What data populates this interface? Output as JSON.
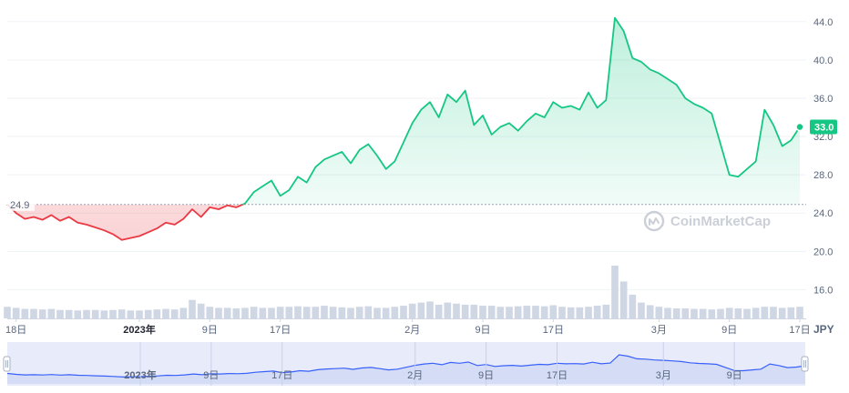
{
  "chart_data": {
    "type": "area",
    "currency": "JPY",
    "baseline": 24.9,
    "baseline_label": "24.9",
    "current_price": 33.0,
    "current_price_label": "33.0",
    "ylim": [
      13.0,
      45.5
    ],
    "y_ticks": [
      "16.0",
      "20.0",
      "24.0",
      "28.0",
      "32.0",
      "36.0",
      "40.0",
      "44.0"
    ],
    "y_tick_values": [
      16,
      20,
      24,
      28,
      32,
      36,
      40,
      44
    ],
    "xlim": [
      "2022-12-17",
      "2023-03-17"
    ],
    "x_ticks": [
      {
        "date": "2022-12-18",
        "label": "18日",
        "bold": false
      },
      {
        "date": "2023-01-01",
        "label": "2023年",
        "bold": true
      },
      {
        "date": "2023-01-09",
        "label": "9日",
        "bold": false
      },
      {
        "date": "2023-01-17",
        "label": "17日",
        "bold": false
      },
      {
        "date": "2023-02-01",
        "label": "2月",
        "bold": false
      },
      {
        "date": "2023-02-09",
        "label": "9日",
        "bold": false
      },
      {
        "date": "2023-02-17",
        "label": "17日",
        "bold": false
      },
      {
        "date": "2023-03-01",
        "label": "3月",
        "bold": false
      },
      {
        "date": "2023-03-09",
        "label": "9日",
        "bold": false
      },
      {
        "date": "2023-03-17",
        "label": "17日",
        "bold": false
      }
    ],
    "navigator_ticks": [
      {
        "date": "2023-01-01",
        "label": "2023年",
        "bold": true
      },
      {
        "date": "2023-01-09",
        "label": "9日",
        "bold": false
      },
      {
        "date": "2023-01-17",
        "label": "17日",
        "bold": false
      },
      {
        "date": "2023-02-01",
        "label": "2月",
        "bold": false
      },
      {
        "date": "2023-02-09",
        "label": "9日",
        "bold": false
      },
      {
        "date": "2023-02-17",
        "label": "17日",
        "bold": false
      },
      {
        "date": "2023-03-01",
        "label": "3月",
        "bold": false
      },
      {
        "date": "2023-03-09",
        "label": "9日",
        "bold": false
      }
    ],
    "price": {
      "dates": [
        "2022-12-17",
        "2022-12-18",
        "2022-12-19",
        "2022-12-20",
        "2022-12-21",
        "2022-12-22",
        "2022-12-23",
        "2022-12-24",
        "2022-12-25",
        "2022-12-26",
        "2022-12-27",
        "2022-12-28",
        "2022-12-29",
        "2022-12-30",
        "2022-12-31",
        "2023-01-01",
        "2023-01-02",
        "2023-01-03",
        "2023-01-04",
        "2023-01-05",
        "2023-01-06",
        "2023-01-07",
        "2023-01-08",
        "2023-01-09",
        "2023-01-10",
        "2023-01-11",
        "2023-01-12",
        "2023-01-13",
        "2023-01-14",
        "2023-01-15",
        "2023-01-16",
        "2023-01-17",
        "2023-01-18",
        "2023-01-19",
        "2023-01-20",
        "2023-01-21",
        "2023-01-22",
        "2023-01-23",
        "2023-01-24",
        "2023-01-25",
        "2023-01-26",
        "2023-01-27",
        "2023-01-28",
        "2023-01-29",
        "2023-01-30",
        "2023-01-31",
        "2023-02-01",
        "2023-02-02",
        "2023-02-03",
        "2023-02-04",
        "2023-02-05",
        "2023-02-06",
        "2023-02-07",
        "2023-02-08",
        "2023-02-09",
        "2023-02-10",
        "2023-02-11",
        "2023-02-12",
        "2023-02-13",
        "2023-02-14",
        "2023-02-15",
        "2023-02-16",
        "2023-02-17",
        "2023-02-18",
        "2023-02-19",
        "2023-02-20",
        "2023-02-21",
        "2023-02-22",
        "2023-02-23",
        "2023-02-24",
        "2023-02-25",
        "2023-02-26",
        "2023-02-27",
        "2023-02-28",
        "2023-03-01",
        "2023-03-02",
        "2023-03-03",
        "2023-03-04",
        "2023-03-05",
        "2023-03-06",
        "2023-03-07",
        "2023-03-08",
        "2023-03-09",
        "2023-03-10",
        "2023-03-11",
        "2023-03-12",
        "2023-03-13",
        "2023-03-14",
        "2023-03-15",
        "2023-03-16",
        "2023-03-17"
      ],
      "values": [
        24.9,
        24.0,
        23.4,
        23.6,
        23.3,
        23.8,
        23.2,
        23.6,
        23.0,
        22.8,
        22.5,
        22.2,
        21.8,
        21.2,
        21.4,
        21.6,
        22.0,
        22.4,
        23.0,
        22.8,
        23.4,
        24.4,
        23.6,
        24.6,
        24.4,
        24.8,
        24.6,
        25.0,
        26.2,
        26.8,
        27.4,
        25.8,
        26.4,
        27.8,
        27.2,
        28.8,
        29.6,
        30.0,
        30.4,
        29.2,
        30.6,
        31.2,
        30.0,
        28.6,
        29.4,
        31.4,
        33.4,
        34.8,
        35.6,
        34.0,
        36.4,
        35.6,
        36.8,
        33.2,
        34.2,
        32.2,
        33.0,
        33.4,
        32.6,
        33.6,
        34.4,
        34.0,
        35.6,
        35.0,
        35.2,
        34.8,
        36.6,
        35.0,
        35.8,
        44.4,
        43.0,
        40.2,
        39.8,
        39.0,
        38.6,
        38.0,
        37.4,
        36.0,
        35.4,
        35.0,
        34.4,
        31.2,
        28.0,
        27.8,
        28.6,
        29.4,
        34.8,
        33.2,
        31.0,
        31.6,
        33.0
      ],
      "color_above": "#16c784",
      "color_below": "#ea3943"
    },
    "volume": {
      "dates": [
        "2022-12-17",
        "2022-12-18",
        "2022-12-19",
        "2022-12-20",
        "2022-12-21",
        "2022-12-22",
        "2022-12-23",
        "2022-12-24",
        "2022-12-25",
        "2022-12-26",
        "2022-12-27",
        "2022-12-28",
        "2022-12-29",
        "2022-12-30",
        "2022-12-31",
        "2023-01-01",
        "2023-01-02",
        "2023-01-03",
        "2023-01-04",
        "2023-01-05",
        "2023-01-06",
        "2023-01-07",
        "2023-01-08",
        "2023-01-09",
        "2023-01-10",
        "2023-01-11",
        "2023-01-12",
        "2023-01-13",
        "2023-01-14",
        "2023-01-15",
        "2023-01-16",
        "2023-01-17",
        "2023-01-18",
        "2023-01-19",
        "2023-01-20",
        "2023-01-21",
        "2023-01-22",
        "2023-01-23",
        "2023-01-24",
        "2023-01-25",
        "2023-01-26",
        "2023-01-27",
        "2023-01-28",
        "2023-01-29",
        "2023-01-30",
        "2023-01-31",
        "2023-02-01",
        "2023-02-02",
        "2023-02-03",
        "2023-02-04",
        "2023-02-05",
        "2023-02-06",
        "2023-02-07",
        "2023-02-08",
        "2023-02-09",
        "2023-02-10",
        "2023-02-11",
        "2023-02-12",
        "2023-02-13",
        "2023-02-14",
        "2023-02-15",
        "2023-02-16",
        "2023-02-17",
        "2023-02-18",
        "2023-02-19",
        "2023-02-20",
        "2023-02-21",
        "2023-02-22",
        "2023-02-23",
        "2023-02-24",
        "2023-02-25",
        "2023-02-26",
        "2023-02-27",
        "2023-02-28",
        "2023-03-01",
        "2023-03-02",
        "2023-03-03",
        "2023-03-04",
        "2023-03-05",
        "2023-03-06",
        "2023-03-07",
        "2023-03-08",
        "2023-03-09",
        "2023-03-10",
        "2023-03-11",
        "2023-03-12",
        "2023-03-13",
        "2023-03-14",
        "2023-03-15",
        "2023-03-16",
        "2023-03-17"
      ],
      "relative": [
        0.22,
        0.2,
        0.18,
        0.18,
        0.17,
        0.18,
        0.16,
        0.16,
        0.15,
        0.16,
        0.16,
        0.15,
        0.16,
        0.17,
        0.15,
        0.15,
        0.16,
        0.17,
        0.18,
        0.17,
        0.2,
        0.35,
        0.28,
        0.22,
        0.2,
        0.2,
        0.19,
        0.2,
        0.22,
        0.2,
        0.2,
        0.22,
        0.22,
        0.23,
        0.22,
        0.22,
        0.24,
        0.22,
        0.21,
        0.2,
        0.22,
        0.23,
        0.2,
        0.2,
        0.22,
        0.24,
        0.28,
        0.3,
        0.32,
        0.26,
        0.3,
        0.28,
        0.26,
        0.26,
        0.24,
        0.24,
        0.22,
        0.22,
        0.23,
        0.24,
        0.24,
        0.23,
        0.25,
        0.22,
        0.21,
        0.21,
        0.22,
        0.24,
        0.26,
        1.0,
        0.7,
        0.45,
        0.3,
        0.25,
        0.22,
        0.2,
        0.19,
        0.19,
        0.18,
        0.18,
        0.17,
        0.18,
        0.2,
        0.19,
        0.18,
        0.2,
        0.22,
        0.22,
        0.2,
        0.21,
        0.22
      ],
      "color": "#cfd6e4"
    }
  },
  "watermark": {
    "text": "CoinMarketCap",
    "icon": "coinmarketcap-logo-icon"
  },
  "axis": {
    "currency_label": "JPY"
  },
  "navigator": {
    "line_color": "#3861fb",
    "handle_left_icon": "drag-handle-icon",
    "handle_right_icon": "drag-handle-icon"
  }
}
